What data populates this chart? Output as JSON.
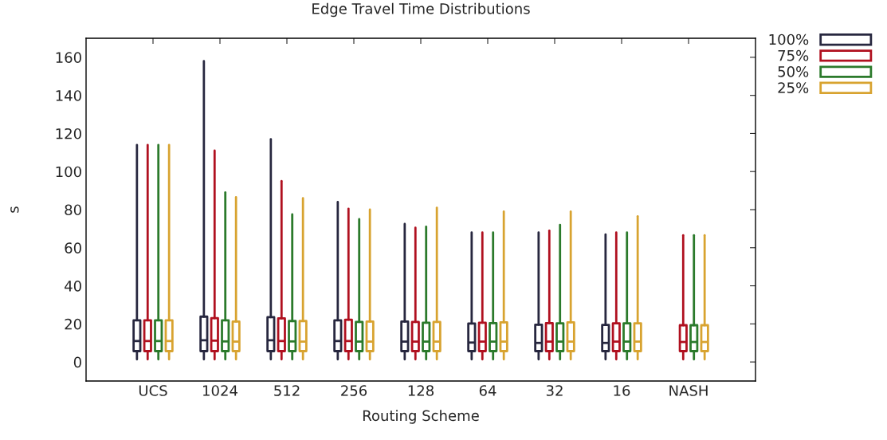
{
  "chart_data": {
    "type": "box",
    "title": "Edge Travel Time Distributions",
    "xlabel": "Routing Scheme",
    "ylabel": "s",
    "categories": [
      "UCS",
      "1024",
      "512",
      "256",
      "128",
      "64",
      "32",
      "16",
      "NASH"
    ],
    "ylim": [
      -10,
      170
    ],
    "yticks": [
      0,
      20,
      40,
      60,
      80,
      100,
      120,
      140,
      160
    ],
    "grid": false,
    "legend": "top right",
    "series": [
      {
        "name": "100%",
        "color": "#27273f",
        "boxes": [
          {
            "low": 1.4,
            "q1": 5.7,
            "median": 11,
            "q3": 21.9,
            "high": 114
          },
          {
            "low": 1.4,
            "q1": 5.7,
            "median": 11.4,
            "q3": 23.8,
            "high": 158
          },
          {
            "low": 1.4,
            "q1": 5.7,
            "median": 11.4,
            "q3": 23.5,
            "high": 117
          },
          {
            "low": 1.4,
            "q1": 5.7,
            "median": 11,
            "q3": 21.9,
            "high": 84
          },
          {
            "low": 1.4,
            "q1": 5.7,
            "median": 10.7,
            "q3": 21.2,
            "high": 72.5
          },
          {
            "low": 1.4,
            "q1": 5.7,
            "median": 10.2,
            "q3": 20.2,
            "high": 68
          },
          {
            "low": 1.4,
            "q1": 5.7,
            "median": 10,
            "q3": 19.6,
            "high": 68
          },
          {
            "low": 1.4,
            "q1": 5.7,
            "median": 10,
            "q3": 19.5,
            "high": 67
          },
          null
        ]
      },
      {
        "name": "75%",
        "color": "#b0101f",
        "boxes": [
          {
            "low": 1.4,
            "q1": 5.7,
            "median": 11,
            "q3": 21.9,
            "high": 114
          },
          {
            "low": 1.4,
            "q1": 5.7,
            "median": 11.2,
            "q3": 23,
            "high": 111
          },
          {
            "low": 1.4,
            "q1": 5.7,
            "median": 11,
            "q3": 22.9,
            "high": 95
          },
          {
            "low": 1.4,
            "q1": 5.7,
            "median": 11,
            "q3": 22.2,
            "high": 80.5
          },
          {
            "low": 1.4,
            "q1": 5.7,
            "median": 10.7,
            "q3": 21,
            "high": 70.5
          },
          {
            "low": 1.4,
            "q1": 5.7,
            "median": 10.7,
            "q3": 20.6,
            "high": 68
          },
          {
            "low": 1.4,
            "q1": 5.7,
            "median": 10.7,
            "q3": 20.4,
            "high": 69
          },
          {
            "low": 1.4,
            "q1": 5.7,
            "median": 10.7,
            "q3": 20.3,
            "high": 68
          },
          {
            "low": 1.4,
            "q1": 5.7,
            "median": 10.5,
            "q3": 19.3,
            "high": 66.5
          }
        ]
      },
      {
        "name": "50%",
        "color": "#2b7a2b",
        "boxes": [
          {
            "low": 1.4,
            "q1": 5.7,
            "median": 11,
            "q3": 21.9,
            "high": 114
          },
          {
            "low": 1.4,
            "q1": 5.7,
            "median": 10.8,
            "q3": 21.9,
            "high": 89
          },
          {
            "low": 1.4,
            "q1": 5.7,
            "median": 10.8,
            "q3": 21.5,
            "high": 77.5
          },
          {
            "low": 1.4,
            "q1": 5.7,
            "median": 10.7,
            "q3": 21,
            "high": 75
          },
          {
            "low": 1.4,
            "q1": 5.7,
            "median": 10.7,
            "q3": 20.6,
            "high": 71
          },
          {
            "low": 1.4,
            "q1": 5.7,
            "median": 10.7,
            "q3": 20.4,
            "high": 68
          },
          {
            "low": 1.4,
            "q1": 5.7,
            "median": 10.7,
            "q3": 20.3,
            "high": 72
          },
          {
            "low": 1.4,
            "q1": 5.7,
            "median": 10.7,
            "q3": 20.3,
            "high": 68
          },
          {
            "low": 1.4,
            "q1": 5.7,
            "median": 10.5,
            "q3": 19.3,
            "high": 66.5
          }
        ]
      },
      {
        "name": "25%",
        "color": "#d8a330",
        "boxes": [
          {
            "low": 1.4,
            "q1": 5.7,
            "median": 11,
            "q3": 21.9,
            "high": 114
          },
          {
            "low": 1.4,
            "q1": 5.7,
            "median": 10.7,
            "q3": 21.2,
            "high": 86.5
          },
          {
            "low": 1.4,
            "q1": 5.7,
            "median": 10.7,
            "q3": 21.5,
            "high": 86
          },
          {
            "low": 1.4,
            "q1": 5.7,
            "median": 10.7,
            "q3": 21.2,
            "high": 80
          },
          {
            "low": 1.4,
            "q1": 5.7,
            "median": 10.7,
            "q3": 21,
            "high": 81
          },
          {
            "low": 1.4,
            "q1": 5.7,
            "median": 10.7,
            "q3": 20.8,
            "high": 79
          },
          {
            "low": 1.4,
            "q1": 5.7,
            "median": 10.7,
            "q3": 20.8,
            "high": 79
          },
          {
            "low": 1.4,
            "q1": 5.7,
            "median": 10.7,
            "q3": 20.3,
            "high": 76.5
          },
          {
            "low": 1.4,
            "q1": 5.7,
            "median": 10.5,
            "q3": 19.3,
            "high": 66.5
          }
        ]
      }
    ]
  }
}
